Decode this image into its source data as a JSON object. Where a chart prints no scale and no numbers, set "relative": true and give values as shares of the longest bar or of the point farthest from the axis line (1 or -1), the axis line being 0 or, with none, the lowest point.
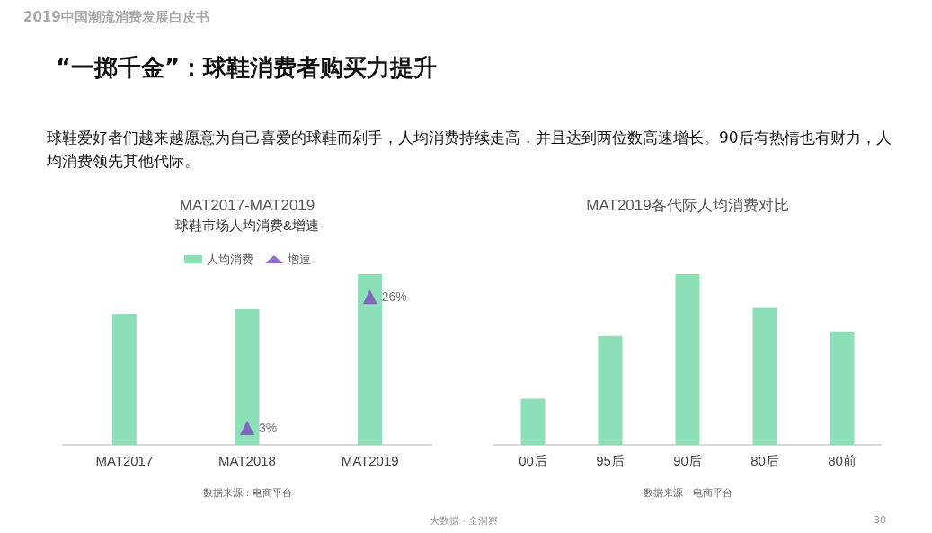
{
  "chart_data": [
    {
      "type": "bar",
      "title": "MAT2017-MAT2019",
      "subtitle": "球鞋市场人均消费&增速",
      "categories": [
        "MAT2017",
        "MAT2018",
        "MAT2019"
      ],
      "relative": true,
      "legend": "top",
      "series": [
        {
          "name": "人均消费",
          "color": "#8ddfb7",
          "values": [
            0.767,
            0.795,
            1
          ]
        }
      ],
      "annotations": [
        "2019中国潮流消费发展白皮书",
        "“一掷千金”：球鞋消费者购买力提升",
        "球鞋爱好者们越来越愿意为自己喜爱的球鞋而剁手，人均消费持续走高，并且达到两位数高速增长。90后有热情也有财力，人均消费领先其他代际。",
        "大数据 · 全洞察",
        "30",
        "数据来源：电商平台"
      ]
    },
    {
      "type": "scatter",
      "categories": [
        null,
        null,
        null
      ],
      "legend": "top",
      "marker": "triangle",
      "tick_labels": false,
      "series": [
        {
          "name": "增速",
          "color": "#7b48bd",
          "values": [
            null,
            3,
            26
          ],
          "value_labels": [
            null,
            "3%",
            "26%"
          ]
        }
      ]
    },
    {
      "type": "bar",
      "title": "MAT2019各代际人均消费对比",
      "categories": [
        "00后",
        "95后",
        "90后",
        "80后",
        "80前"
      ],
      "relative": true,
      "color": "#8ddfb7",
      "values": [
        0.271,
        0.638,
        1,
        0.803,
        0.665
      ],
      "annotations": [
        "数据来源：电商平台"
      ]
    }
  ]
}
